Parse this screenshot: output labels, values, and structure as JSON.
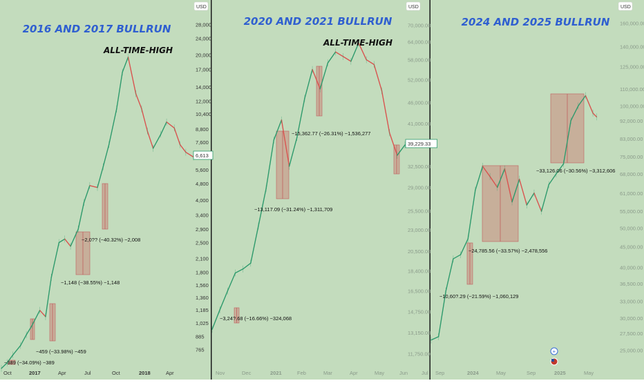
{
  "colors": {
    "background": "#c3dcbd",
    "up": "#2e9a6c",
    "down": "#d9534f",
    "box_fill": "rgba(205,120,110,0.45)",
    "box_stroke": "#c06060",
    "title": "#2f5fd0",
    "divider": "#1a1a1a",
    "price_label": "#2e9a6c"
  },
  "chart_data": [
    {
      "type": "line",
      "title": "2016 AND 2017 BULLRUN",
      "annotation_top": "ALL-TIME-HIGH",
      "currency_label": "USD",
      "y_scale": "log",
      "ylim": [
        700,
        32000
      ],
      "y_ticks": [
        "28,000",
        "24,000",
        "20,000",
        "17,000",
        "14,000",
        "12,000",
        "10,400",
        "8,800",
        "7,600",
        "6,600",
        "5,600",
        "4,800",
        "4,000",
        "3,400",
        "2,900",
        "2,500",
        "2,100",
        "1,800",
        "1,560",
        "1,360",
        "1,185",
        "1,025",
        "885",
        "765"
      ],
      "x_ticks": [
        "Oct",
        "2017",
        "Apr",
        "Jul",
        "Oct",
        "2018",
        "Apr"
      ],
      "last_price": "6,613",
      "drawdowns": [
        "−389 (−34.09%) −389",
        "−459 (−33.98%) −459",
        "−1,148 (−38.55%) −1,148",
        "−2,0?? (−40.32%) −2,008"
      ],
      "x": [
        0,
        0.03,
        0.06,
        0.1,
        0.13,
        0.16,
        0.2,
        0.23,
        0.26,
        0.3,
        0.33,
        0.36,
        0.4,
        0.43,
        0.46,
        0.5,
        0.53,
        0.56,
        0.6,
        0.63,
        0.66,
        0.7,
        0.73,
        0.76,
        0.79,
        0.83,
        0.86,
        0.9,
        0.93,
        0.96,
        1.0
      ],
      "values": [
        620,
        660,
        720,
        800,
        900,
        1000,
        1180,
        1100,
        1700,
        2500,
        2600,
        2400,
        2900,
        3900,
        4700,
        4600,
        5800,
        7400,
        11000,
        16500,
        19500,
        13000,
        11000,
        8600,
        7100,
        8300,
        9500,
        8900,
        7400,
        6800,
        6450
      ]
    },
    {
      "type": "line",
      "title": "2020 AND 2021 BULLRUN",
      "annotation_top": "ALL-TIME-HIGH",
      "currency_label": "USD",
      "y_scale": "log",
      "ylim": [
        11500,
        75000
      ],
      "y_ticks": [
        "70,000.00",
        "64,000.00",
        "58,000.00",
        "52,000.00",
        "46,000.00",
        "41,000.00",
        "36,500.00",
        "32,500.00",
        "29,000.00",
        "25,500.00",
        "23,000.00",
        "20,500.00",
        "18,400.00",
        "16,500.00",
        "14,750.00",
        "13,150.00",
        "11,750.00"
      ],
      "x_ticks": [
        "Nov",
        "Dec",
        "2021",
        "Feb",
        "Mar",
        "Apr",
        "May",
        "Jun",
        "Jul"
      ],
      "last_price": "39,229.33",
      "drawdowns": [
        "−3,24?.68 (−16.66%) −324,068",
        "−13,117.09 (−31.24%) −1,311,709",
        "−15,362.77 (−26.31%) −1,536,277"
      ],
      "x": [
        0,
        0.04,
        0.08,
        0.12,
        0.16,
        0.2,
        0.24,
        0.28,
        0.32,
        0.36,
        0.4,
        0.44,
        0.48,
        0.52,
        0.56,
        0.6,
        0.64,
        0.68,
        0.72,
        0.76,
        0.8,
        0.84,
        0.88,
        0.92,
        0.96,
        1.0
      ],
      "values": [
        13400,
        14900,
        16500,
        18200,
        18600,
        19200,
        23500,
        28800,
        37500,
        41800,
        32500,
        38000,
        47000,
        55000,
        49500,
        57000,
        60500,
        59000,
        57500,
        63500,
        58000,
        56500,
        49000,
        39000,
        34500,
        36500
      ]
    },
    {
      "type": "line",
      "title": "2024 AND 2025 BULLRUN",
      "currency_label": "USD",
      "y_scale": "log",
      "ylim": [
        24000,
        170000
      ],
      "y_ticks": [
        "160,000.00",
        "140,000.00",
        "125,000.00",
        "110,000.00",
        "100,000.00",
        "92,000.00",
        "83,000.00",
        "75,000.00",
        "68,000.00",
        "61,000.00",
        "55,000.00",
        "50,000.00",
        "45,000.00",
        "40,000.00",
        "36,500.00",
        "33,000.00",
        "30,000.00",
        "27,500.00",
        "25,000.00"
      ],
      "x_ticks": [
        "Sep",
        "2024",
        "May",
        "Sep",
        "2025",
        "May"
      ],
      "drawdowns": [
        "−10,60?.29 (−21.59%) −1,060,129",
        "−24,785.56 (−33.57%) −2,478,556",
        "−33,126.06 (−30.56%) −3,312,606"
      ],
      "x": [
        0,
        0.04,
        0.08,
        0.12,
        0.16,
        0.2,
        0.24,
        0.28,
        0.32,
        0.36,
        0.4,
        0.44,
        0.48,
        0.52,
        0.56,
        0.6,
        0.64,
        0.68,
        0.72,
        0.76,
        0.8,
        0.84,
        0.88,
        0.9
      ],
      "values": [
        26500,
        27000,
        35000,
        42000,
        43000,
        47000,
        62000,
        71000,
        67000,
        63000,
        70000,
        58000,
        66000,
        57000,
        61000,
        55000,
        64000,
        68000,
        72000,
        92000,
        100000,
        106000,
        96000,
        94000
      ]
    }
  ],
  "footer_icons": [
    "plus-icon",
    "us-flag-icon"
  ]
}
